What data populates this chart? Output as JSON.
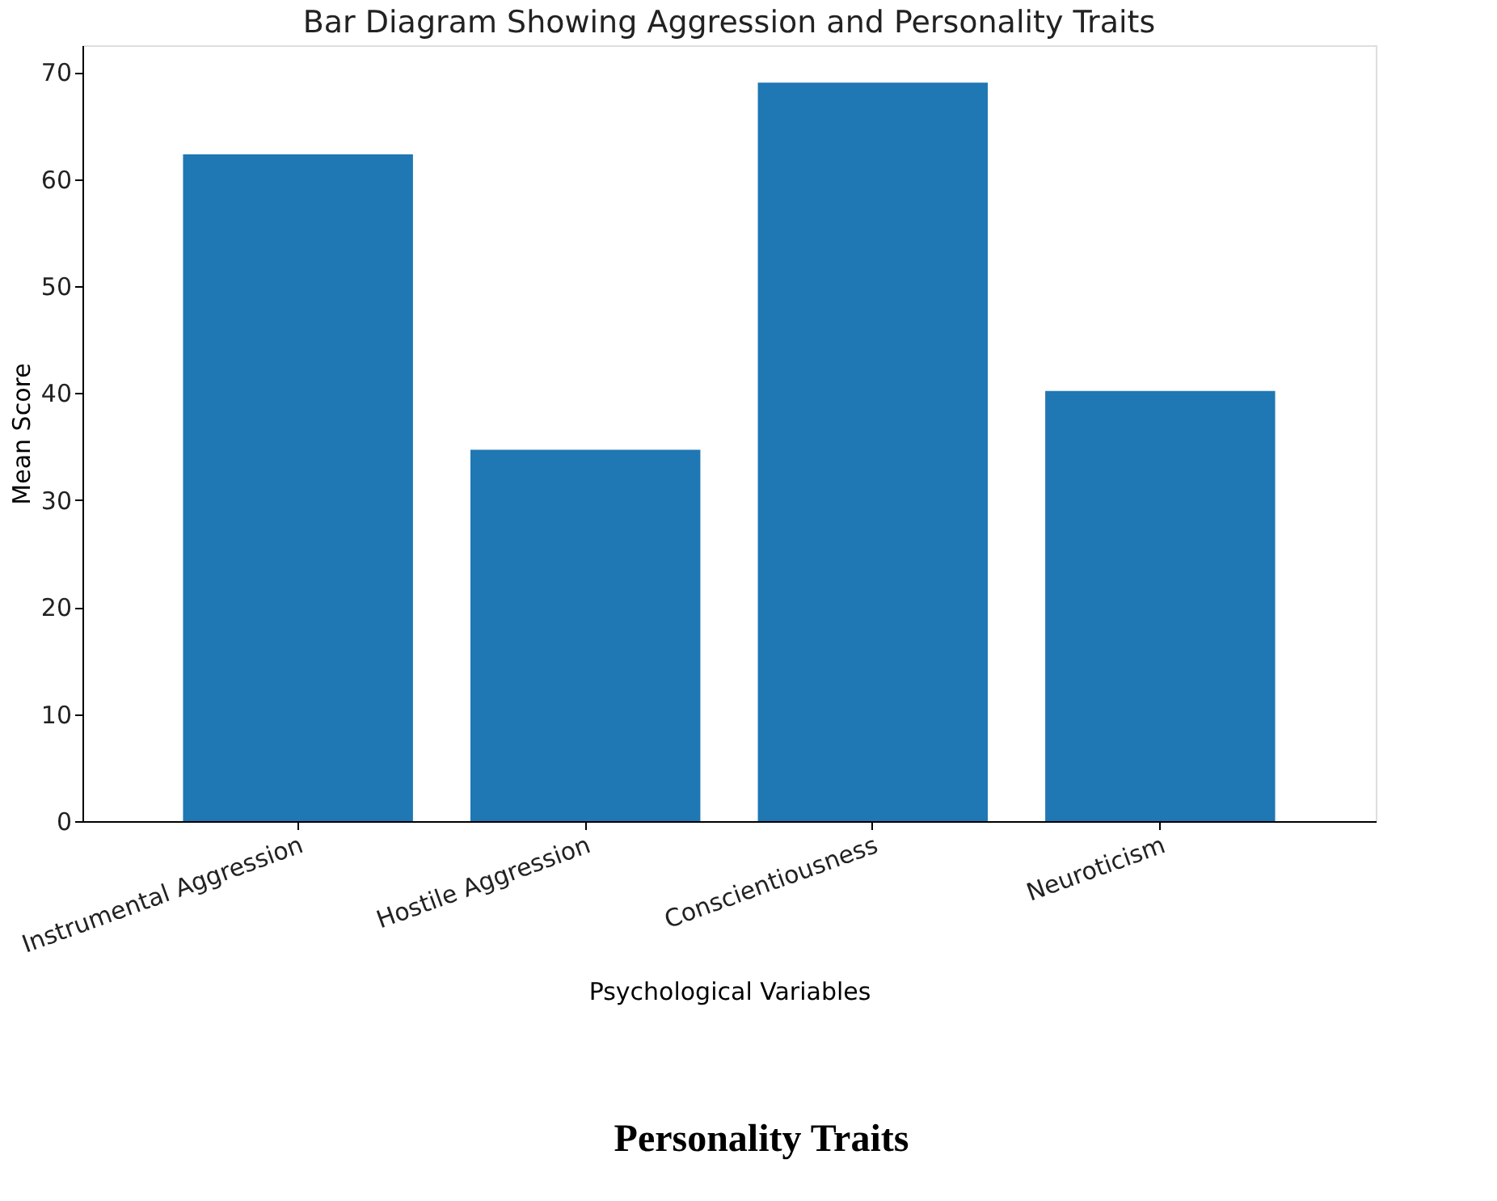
{
  "chart_data": {
    "type": "bar",
    "title": "Bar Diagram Showing Aggression and Personality Traits",
    "xlabel": "Psychological Variables",
    "ylabel": "Mean Score",
    "categories": [
      "Instrumental Aggression",
      "Hostile Aggression",
      "Conscientiousness",
      "Neuroticism"
    ],
    "values": [
      62.3,
      34.7,
      69.0,
      40.2
    ],
    "color": "#1f77b4",
    "ylim": [
      0,
      72.5
    ],
    "yticks": [
      0,
      10,
      20,
      30,
      40,
      50,
      60,
      70
    ],
    "grid": false,
    "annotations": [
      "Personality Traits"
    ]
  }
}
